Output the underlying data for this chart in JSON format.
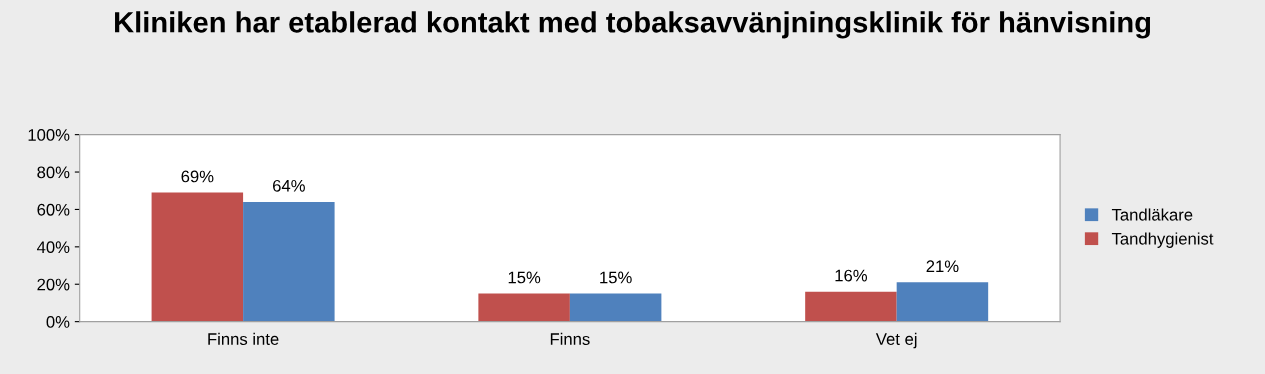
{
  "chart_data": {
    "type": "bar",
    "title": "Kliniken har etablerad kontakt med tobaksavvänjningsklinik för hänvisning",
    "categories": [
      "Finns inte",
      "Finns",
      "Vet ej"
    ],
    "series": [
      {
        "name": "Tandhygienist",
        "color": "#c0504d",
        "values": [
          69,
          15,
          16
        ],
        "value_labels": [
          "69%",
          "15%",
          "16%"
        ]
      },
      {
        "name": "Tandläkare",
        "color": "#4f81bd",
        "values": [
          64,
          15,
          21
        ],
        "value_labels": [
          "64%",
          "15%",
          "21%"
        ]
      }
    ],
    "ylim": [
      0,
      100
    ],
    "yticks": [
      {
        "value": 0,
        "label": "0%"
      },
      {
        "value": 20,
        "label": "20%"
      },
      {
        "value": 40,
        "label": "40%"
      },
      {
        "value": 60,
        "label": "60%"
      },
      {
        "value": 80,
        "label": "80%"
      },
      {
        "value": 100,
        "label": "100%"
      }
    ],
    "grid": false,
    "legend": "right"
  }
}
